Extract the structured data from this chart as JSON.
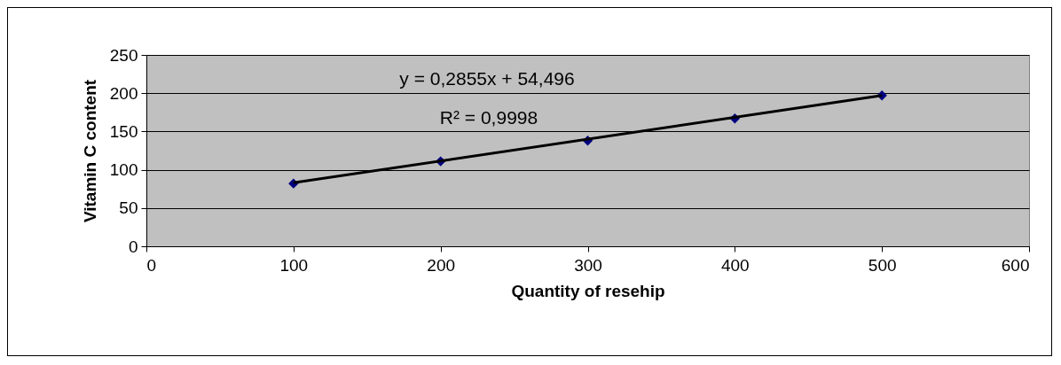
{
  "chart_data": {
    "type": "scatter",
    "xlabel": "Quantity of resehip",
    "ylabel": "Vitamin C content",
    "xlim": [
      0,
      600
    ],
    "xticks": [
      0,
      100,
      200,
      300,
      400,
      500,
      600
    ],
    "ylim": [
      0,
      250
    ],
    "yticks": [
      0,
      50,
      100,
      150,
      200,
      250
    ],
    "grid": "y",
    "marker": "diamond",
    "series": [
      {
        "color": "#000080",
        "x": [
          100,
          200,
          300,
          400,
          500
        ],
        "values": [
          82,
          111,
          138,
          167,
          197
        ]
      },
      {
        "type": "line",
        "color": "#000000",
        "line_style": "solid",
        "marker": "none",
        "x": [
          100,
          500
        ],
        "values": [
          83,
          197
        ]
      }
    ],
    "annotations": [
      "y = 0,2855x + 54,496",
      "R² = 0,9998"
    ]
  }
}
